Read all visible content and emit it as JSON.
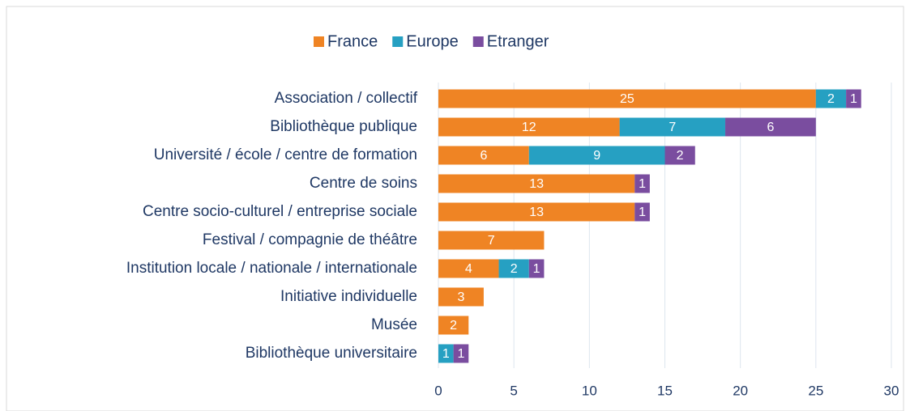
{
  "chart_data": {
    "type": "stacked-barh",
    "categories": [
      "Association / collectif",
      "Bibliothèque publique",
      "Université / école / centre de formation",
      "Centre de soins",
      "Centre socio-culturel / entreprise sociale",
      "Festival / compagnie de théâtre",
      "Institution locale / nationale / internationale",
      "Initiative individuelle",
      "Musée",
      "Bibliothèque universitaire"
    ],
    "series": [
      {
        "name": "France",
        "color": "#ef8424",
        "values": [
          25,
          12,
          6,
          13,
          13,
          7,
          4,
          3,
          2,
          0
        ]
      },
      {
        "name": "Europe",
        "color": "#26a0c2",
        "values": [
          2,
          7,
          9,
          0,
          0,
          0,
          2,
          0,
          0,
          1
        ]
      },
      {
        "name": "Etranger",
        "color": "#7a4d9f",
        "values": [
          1,
          6,
          2,
          1,
          1,
          0,
          1,
          0,
          0,
          1
        ]
      }
    ],
    "xlim": [
      0,
      30
    ],
    "xticks": [
      0,
      5,
      10,
      15,
      20,
      25,
      30
    ],
    "grid": true,
    "legend": "top"
  }
}
